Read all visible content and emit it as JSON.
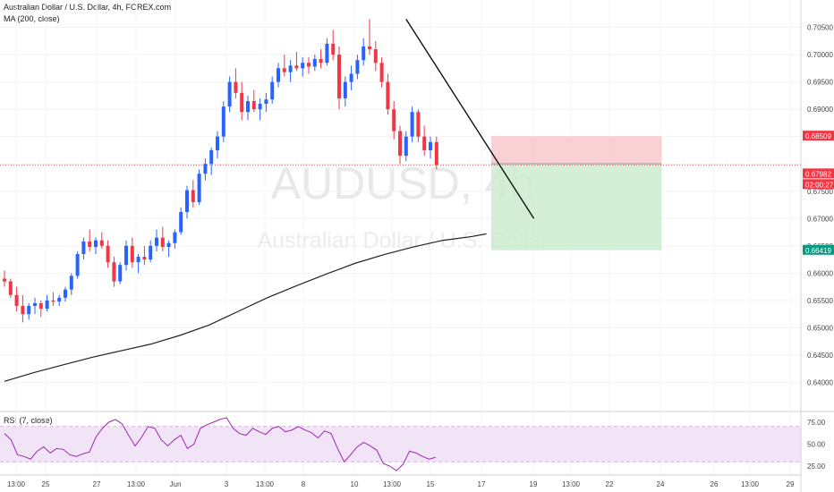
{
  "header": {
    "title": "Australian Dollar / U.S. Dollar, 4h, FOREX.com",
    "ma_label": "MA (200, close)",
    "rsi_label": "RSI (7, close)"
  },
  "watermark": {
    "symbol": "AUDUSD, 4h",
    "name": "Australian Dollar / U.S. Dollar"
  },
  "colors": {
    "up": "#2962ff",
    "down": "#f23645",
    "ma": "#222222",
    "rsi": "#9c27b0",
    "stop_zone": "#f8c9cc",
    "target_zone": "#cdeccf",
    "current_line": "#f23645"
  },
  "chart_data": [
    {
      "type": "candlestick",
      "title": "",
      "x_labels": [
        "13:00",
        "25",
        "27",
        "13:00",
        "Jun",
        "3",
        "13:00",
        "8",
        "10",
        "13:00",
        "15",
        "17",
        "19",
        "13:00",
        "22",
        "24",
        "26",
        "13:00",
        "29"
      ],
      "ylim": [
        0.6355,
        0.71
      ],
      "y_ticks": [
        "0.70500",
        "0.70000",
        "0.69500",
        "0.69000",
        "0.68500",
        "0.68000",
        "0.67500",
        "0.67000",
        "0.66500",
        "0.66000",
        "0.65500",
        "0.65000",
        "0.64500",
        "0.64000"
      ],
      "candles": [
        [
          0.659,
          0.6605,
          0.6575,
          0.6585
        ],
        [
          0.6585,
          0.659,
          0.6555,
          0.656
        ],
        [
          0.656,
          0.6575,
          0.653,
          0.654
        ],
        [
          0.654,
          0.656,
          0.651,
          0.6525
        ],
        [
          0.6525,
          0.6545,
          0.6515,
          0.654
        ],
        [
          0.654,
          0.6555,
          0.6525,
          0.6545
        ],
        [
          0.6545,
          0.655,
          0.652,
          0.6535
        ],
        [
          0.6535,
          0.656,
          0.653,
          0.655
        ],
        [
          0.655,
          0.6565,
          0.654,
          0.6548
        ],
        [
          0.6548,
          0.656,
          0.654,
          0.6555
        ],
        [
          0.6555,
          0.6575,
          0.6548,
          0.657
        ],
        [
          0.657,
          0.66,
          0.656,
          0.6595
        ],
        [
          0.6595,
          0.664,
          0.659,
          0.6635
        ],
        [
          0.6635,
          0.6665,
          0.6625,
          0.6658
        ],
        [
          0.6658,
          0.668,
          0.664,
          0.6648
        ],
        [
          0.6648,
          0.6665,
          0.6635,
          0.666
        ],
        [
          0.666,
          0.6675,
          0.6645,
          0.665
        ],
        [
          0.665,
          0.666,
          0.661,
          0.662
        ],
        [
          0.662,
          0.663,
          0.6575,
          0.6585
        ],
        [
          0.6585,
          0.662,
          0.658,
          0.6615
        ],
        [
          0.6615,
          0.666,
          0.6605,
          0.665
        ],
        [
          0.665,
          0.6665,
          0.661,
          0.662
        ],
        [
          0.662,
          0.6635,
          0.66,
          0.663
        ],
        [
          0.663,
          0.665,
          0.6615,
          0.6625
        ],
        [
          0.6625,
          0.666,
          0.662,
          0.665
        ],
        [
          0.665,
          0.668,
          0.664,
          0.6665
        ],
        [
          0.6665,
          0.6685,
          0.664,
          0.6648
        ],
        [
          0.6648,
          0.666,
          0.663,
          0.6655
        ],
        [
          0.6655,
          0.668,
          0.6645,
          0.6675
        ],
        [
          0.6675,
          0.672,
          0.667,
          0.6712
        ],
        [
          0.6712,
          0.676,
          0.67,
          0.6752
        ],
        [
          0.6752,
          0.677,
          0.672,
          0.673
        ],
        [
          0.673,
          0.679,
          0.6725,
          0.6782
        ],
        [
          0.6782,
          0.681,
          0.677,
          0.68
        ],
        [
          0.68,
          0.683,
          0.678,
          0.6825
        ],
        [
          0.6825,
          0.686,
          0.681,
          0.685
        ],
        [
          0.685,
          0.6915,
          0.684,
          0.6905
        ],
        [
          0.6905,
          0.696,
          0.6895,
          0.695
        ],
        [
          0.695,
          0.6975,
          0.692,
          0.693
        ],
        [
          0.693,
          0.695,
          0.688,
          0.6895
        ],
        [
          0.6895,
          0.6925,
          0.688,
          0.6915
        ],
        [
          0.6915,
          0.6935,
          0.6895,
          0.69
        ],
        [
          0.69,
          0.692,
          0.688,
          0.691
        ],
        [
          0.691,
          0.693,
          0.6895,
          0.6918
        ],
        [
          0.6918,
          0.696,
          0.691,
          0.695
        ],
        [
          0.695,
          0.6985,
          0.694,
          0.6975
        ],
        [
          0.6975,
          0.7,
          0.696,
          0.6968
        ],
        [
          0.6968,
          0.699,
          0.695,
          0.698
        ],
        [
          0.698,
          0.7005,
          0.697,
          0.6975
        ],
        [
          0.6975,
          0.6995,
          0.696,
          0.6985
        ],
        [
          0.6985,
          0.6995,
          0.6965,
          0.6978
        ],
        [
          0.6978,
          0.7,
          0.697,
          0.6992
        ],
        [
          0.6992,
          0.701,
          0.6975,
          0.6985
        ],
        [
          0.6985,
          0.703,
          0.698,
          0.702
        ],
        [
          0.702,
          0.7045,
          0.699,
          0.7
        ],
        [
          0.7,
          0.7015,
          0.69,
          0.692
        ],
        [
          0.692,
          0.696,
          0.6905,
          0.695
        ],
        [
          0.695,
          0.698,
          0.6935,
          0.6965
        ],
        [
          0.6965,
          0.7,
          0.6955,
          0.699
        ],
        [
          0.699,
          0.703,
          0.698,
          0.7015
        ],
        [
          0.7015,
          0.7065,
          0.7,
          0.701
        ],
        [
          0.701,
          0.7025,
          0.697,
          0.6985
        ],
        [
          0.6985,
          0.6995,
          0.694,
          0.695
        ],
        [
          0.695,
          0.6965,
          0.689,
          0.69
        ],
        [
          0.69,
          0.6915,
          0.6845,
          0.686
        ],
        [
          0.686,
          0.687,
          0.68,
          0.6815
        ],
        [
          0.6815,
          0.686,
          0.6805,
          0.685
        ],
        [
          0.685,
          0.6905,
          0.684,
          0.6895
        ],
        [
          0.6895,
          0.69,
          0.684,
          0.685
        ],
        [
          0.685,
          0.687,
          0.6815,
          0.6825
        ],
        [
          0.6825,
          0.685,
          0.681,
          0.684
        ],
        [
          0.684,
          0.685,
          0.679,
          0.6798
        ]
      ],
      "ma200": [
        [
          0,
          0.6402
        ],
        [
          12,
          0.6418
        ],
        [
          24,
          0.6432
        ],
        [
          36,
          0.6446
        ],
        [
          48,
          0.6458
        ],
        [
          60,
          0.647
        ],
        [
          72,
          0.6486
        ],
        [
          84,
          0.6505
        ],
        [
          96,
          0.653
        ],
        [
          108,
          0.6555
        ],
        [
          120,
          0.6577
        ],
        [
          132,
          0.6598
        ],
        [
          144,
          0.6618
        ],
        [
          156,
          0.6634
        ],
        [
          168,
          0.6648
        ],
        [
          180,
          0.666
        ],
        [
          192,
          0.6667
        ],
        [
          198,
          0.6672
        ]
      ],
      "trendline": [
        {
          "bar": 66,
          "price": 0.7065
        },
        {
          "bar": 87,
          "price": 0.67
        }
      ],
      "position": {
        "entry": 0.68003,
        "stop": 0.68509,
        "target": 0.66419,
        "start_bar": 80,
        "end_bar": 108
      },
      "price_labels": {
        "stop": "0.68509",
        "entry": "0.68003",
        "current": "0.67982",
        "countdown": "02:00:27",
        "partial": "0.67500",
        "target": "0.66419",
        "partial_tick": "0.66500"
      }
    },
    {
      "type": "line",
      "name": "RSI",
      "ylim": [
        15,
        85
      ],
      "y_ticks": [
        "75.00",
        "50.00",
        "25.00"
      ],
      "bands": [
        70,
        30
      ],
      "values": [
        62,
        55,
        38,
        36,
        33,
        42,
        47,
        40,
        45,
        44,
        38,
        36,
        39,
        41,
        58,
        68,
        75,
        78,
        73,
        60,
        48,
        58,
        70,
        68,
        55,
        48,
        55,
        60,
        45,
        50,
        68,
        72,
        75,
        78,
        80,
        68,
        62,
        60,
        68,
        64,
        61,
        68,
        70,
        64,
        66,
        70,
        66,
        63,
        57,
        65,
        62,
        45,
        30,
        38,
        47,
        52,
        48,
        43,
        28,
        25,
        20,
        27,
        42,
        40,
        36,
        33,
        35
      ]
    }
  ]
}
